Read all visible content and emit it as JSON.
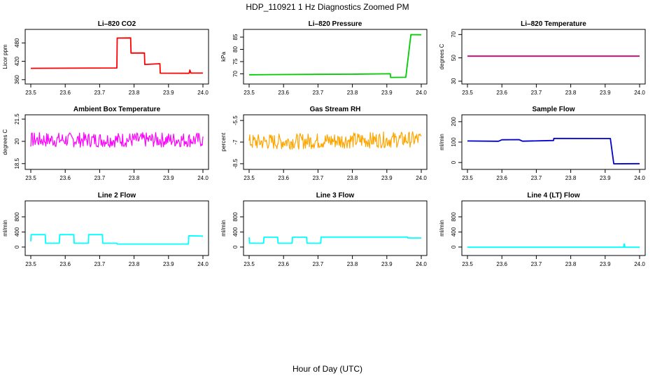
{
  "page": {
    "title": "HDP_110921  1 Hz Diagnostics Zoomed PM",
    "xlabel": "Hour of Day (UTC)"
  },
  "chart_data": [
    {
      "type": "line",
      "title": "Li–820 CO2",
      "ylabel": "Licor ppm",
      "color": "#ff0000",
      "xlim": [
        23.5,
        24.0
      ],
      "ylim": [
        355,
        515
      ],
      "xticks": [
        "23.5",
        "23.6",
        "23.7",
        "23.8",
        "23.9",
        "24.0"
      ],
      "yticks": [
        360,
        420,
        480
      ],
      "noise": 1.5,
      "series": [
        {
          "x": [
            23.5,
            23.75,
            23.751,
            23.79,
            23.791,
            23.83,
            23.831,
            23.875,
            23.876,
            23.96,
            23.962,
            23.965,
            24.0
          ],
          "y": [
            397,
            398,
            497,
            497,
            447,
            447,
            411,
            411,
            381,
            381,
            392,
            381,
            381
          ]
        }
      ]
    },
    {
      "type": "line",
      "title": "Li–820 Pressure",
      "ylabel": "kPa",
      "color": "#00cc00",
      "xlim": [
        23.5,
        24.0
      ],
      "ylim": [
        67,
        87
      ],
      "xticks": [
        "23.5",
        "23.6",
        "23.7",
        "23.8",
        "23.9",
        "24.0"
      ],
      "yticks": [
        70,
        75,
        80,
        85
      ],
      "noise": 0.1,
      "series": [
        {
          "x": [
            23.5,
            23.7,
            23.8,
            23.91,
            23.911,
            23.955,
            23.97,
            24.0
          ],
          "y": [
            69.7,
            69.8,
            69.9,
            70.0,
            68.6,
            68.6,
            86,
            86
          ]
        }
      ]
    },
    {
      "type": "line",
      "title": "Li–820 Temperature",
      "ylabel": "degrees C",
      "color": "#cc0077",
      "xlim": [
        23.5,
        24.0
      ],
      "ylim": [
        30,
        72
      ],
      "xticks": [
        "23.5",
        "23.6",
        "23.7",
        "23.8",
        "23.9",
        "24.0"
      ],
      "yticks": [
        30,
        50,
        70
      ],
      "noise": 0,
      "series": [
        {
          "x": [
            23.5,
            24.0
          ],
          "y": [
            51.5,
            51.5
          ]
        }
      ]
    },
    {
      "type": "line",
      "title": "Ambient Box Temperature",
      "ylabel": "degrees C",
      "color": "#ff00ff",
      "xlim": [
        23.5,
        24.0
      ],
      "ylim": [
        18.3,
        21.6
      ],
      "xticks": [
        "23.5",
        "23.6",
        "23.7",
        "23.8",
        "23.9",
        "24.0"
      ],
      "yticks": [
        18.5,
        20.0,
        21.5
      ],
      "noise": 0.5,
      "noise_points": 240,
      "series": [
        {
          "x": [
            23.5,
            24.0
          ],
          "y": [
            20.1,
            20.1
          ]
        }
      ]
    },
    {
      "type": "line",
      "title": "Gas Stream RH",
      "ylabel": "percent",
      "color": "#ffa500",
      "xlim": [
        23.5,
        24.0
      ],
      "ylim": [
        -8.7,
        -5.3
      ],
      "xticks": [
        "23.5",
        "23.6",
        "23.7",
        "23.8",
        "23.9",
        "24.0"
      ],
      "yticks": [
        -8.5,
        -7.0,
        -5.5
      ],
      "noise": 0.55,
      "noise_points": 260,
      "series": [
        {
          "x": [
            23.5,
            24.0
          ],
          "y": [
            -7.0,
            -6.8
          ]
        }
      ]
    },
    {
      "type": "line",
      "title": "Sample Flow",
      "ylabel": "ml/min",
      "color": "#0000cc",
      "xlim": [
        23.5,
        24.0
      ],
      "ylim": [
        -20,
        220
      ],
      "xticks": [
        "23.5",
        "23.6",
        "23.7",
        "23.8",
        "23.9",
        "24.0"
      ],
      "yticks": [
        0,
        100,
        200
      ],
      "noise": 2,
      "series": [
        {
          "x": [
            23.5,
            23.59,
            23.6,
            23.65,
            23.66,
            23.75,
            23.751,
            23.915,
            23.925,
            24.0
          ],
          "y": [
            105,
            106,
            110,
            110,
            106,
            108,
            118,
            118,
            -5,
            -5
          ]
        }
      ]
    },
    {
      "type": "line",
      "title": "Line 2 Flow",
      "ylabel": "ml/min",
      "color": "#00ffff",
      "xlim": [
        23.5,
        24.0
      ],
      "ylim": [
        -150,
        1150
      ],
      "xticks": [
        "23.5",
        "23.6",
        "23.7",
        "23.8",
        "23.9",
        "24.0"
      ],
      "yticks": [
        0,
        400,
        800
      ],
      "noise": 0,
      "series": [
        {
          "x": [
            23.5,
            23.501,
            23.542,
            23.543,
            23.583,
            23.584,
            23.625,
            23.626,
            23.667,
            23.668,
            23.708,
            23.709,
            23.75,
            23.751,
            23.958,
            23.959,
            24.0
          ],
          "y": [
            150,
            330,
            330,
            100,
            100,
            330,
            330,
            100,
            100,
            330,
            330,
            100,
            100,
            80,
            80,
            300,
            290
          ]
        }
      ]
    },
    {
      "type": "line",
      "title": "Line 3 Flow",
      "ylabel": "ml/min",
      "color": "#00ffff",
      "xlim": [
        23.5,
        24.0
      ],
      "ylim": [
        -150,
        1150
      ],
      "xticks": [
        "23.5",
        "23.6",
        "23.7",
        "23.8",
        "23.9",
        "24.0"
      ],
      "yticks": [
        0,
        400,
        800
      ],
      "noise": 0,
      "series": [
        {
          "x": [
            23.5,
            23.501,
            23.542,
            23.543,
            23.583,
            23.584,
            23.625,
            23.626,
            23.667,
            23.668,
            23.708,
            23.709,
            23.96,
            23.961,
            24.0
          ],
          "y": [
            260,
            100,
            100,
            260,
            260,
            100,
            100,
            260,
            260,
            100,
            100,
            265,
            265,
            240,
            240
          ]
        }
      ]
    },
    {
      "type": "line",
      "title": "Line 4 (LT) Flow",
      "ylabel": "ml/min",
      "color": "#00ffff",
      "xlim": [
        23.5,
        24.0
      ],
      "ylim": [
        -150,
        1150
      ],
      "xticks": [
        "23.5",
        "23.6",
        "23.7",
        "23.8",
        "23.9",
        "24.0"
      ],
      "yticks": [
        0,
        400,
        800
      ],
      "noise": 0,
      "series": [
        {
          "x": [
            23.5,
            23.954,
            23.955,
            23.956,
            23.957,
            24.0
          ],
          "y": [
            -5,
            -5,
            80,
            80,
            -5,
            -5
          ]
        }
      ]
    }
  ]
}
